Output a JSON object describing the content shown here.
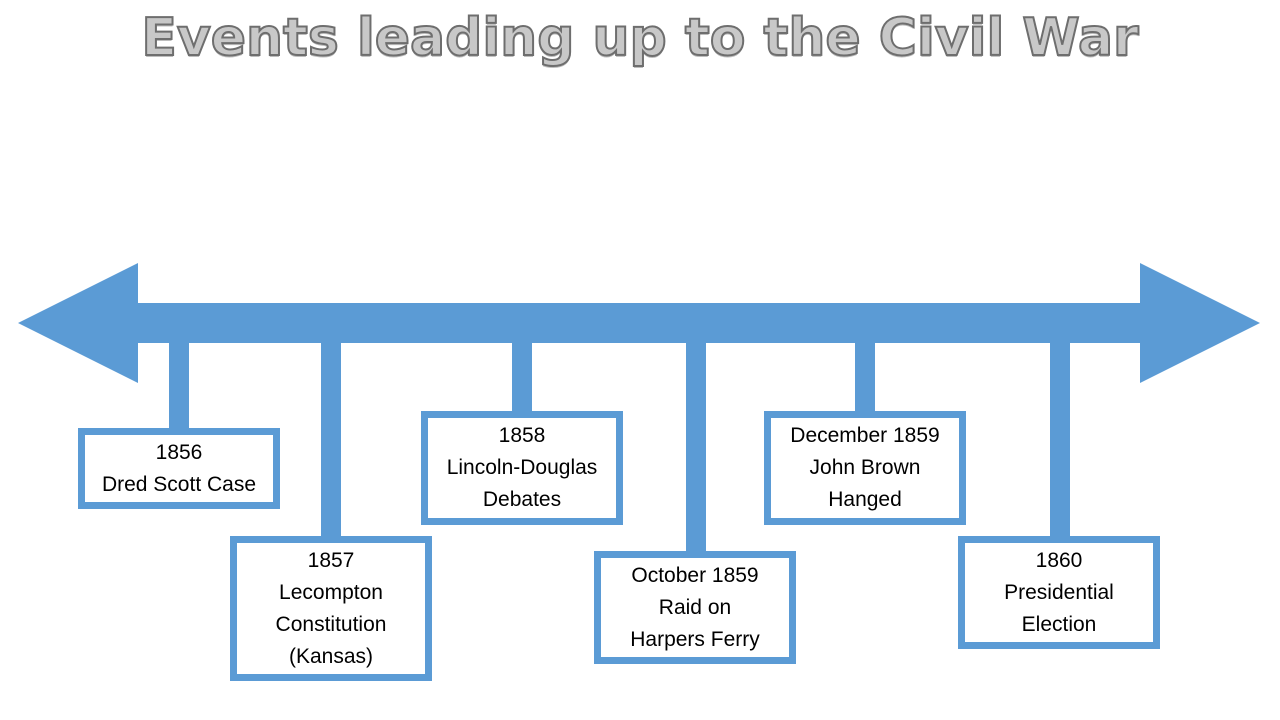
{
  "title": "Events leading up to the Civil War",
  "colors": {
    "timeline": "#5b9bd5",
    "box_border": "#5b9bd5",
    "title_fill": "#c8c8c8",
    "title_stroke": "#6e6e6e"
  },
  "events": [
    {
      "date": "1856",
      "lines": [
        "Dred Scott Case"
      ]
    },
    {
      "date": "1857",
      "lines": [
        "Lecompton",
        "Constitution",
        "(Kansas)"
      ]
    },
    {
      "date": "1858",
      "lines": [
        "Lincoln-Douglas",
        "Debates"
      ]
    },
    {
      "date": "October 1859",
      "lines": [
        "Raid on",
        "Harpers Ferry"
      ]
    },
    {
      "date": "December 1859",
      "lines": [
        "John Brown",
        "Hanged"
      ]
    },
    {
      "date": "1860",
      "lines": [
        "Presidential",
        "Election"
      ]
    }
  ]
}
